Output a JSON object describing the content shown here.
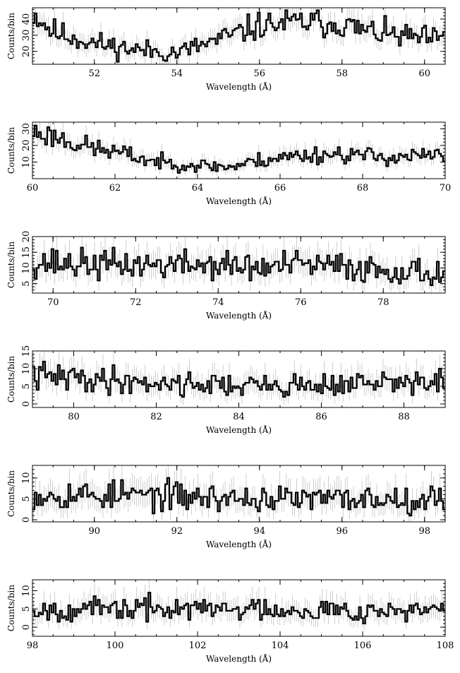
{
  "chart_data": [
    {
      "type": "line",
      "style": "histogram-step-with-errorbars",
      "xlabel": "Wavelength (Å)",
      "ylabel": "Counts/bin",
      "xlim": [
        50.5,
        60.5
      ],
      "ylim": [
        12,
        47
      ],
      "xticks": [
        52,
        54,
        56,
        58,
        60
      ],
      "yticks": [
        20,
        30,
        40
      ],
      "seed": 11,
      "segments": [
        [
          50.5,
          44
        ],
        [
          51.0,
          32
        ],
        [
          52.0,
          25
        ],
        [
          53.0,
          21
        ],
        [
          54.0,
          19
        ],
        [
          55.0,
          27
        ],
        [
          56.0,
          36
        ],
        [
          57.0,
          38
        ],
        [
          58.0,
          37
        ],
        [
          58.5,
          33
        ],
        [
          59.5,
          29
        ],
        [
          60.5,
          27
        ]
      ]
    },
    {
      "type": "line",
      "style": "histogram-step-with-errorbars",
      "xlabel": "Wavelength (Å)",
      "ylabel": "Counts/bin",
      "xlim": [
        60,
        70
      ],
      "ylim": [
        0,
        34
      ],
      "xticks": [
        60,
        62,
        64,
        66,
        68,
        70
      ],
      "yticks": [
        10,
        20,
        30
      ],
      "seed": 23,
      "segments": [
        [
          60,
          28
        ],
        [
          60.6,
          25
        ],
        [
          61.2,
          20
        ],
        [
          62.2,
          15
        ],
        [
          63.0,
          10
        ],
        [
          64.0,
          8
        ],
        [
          64.8,
          7
        ],
        [
          65.5,
          11
        ],
        [
          66.5,
          14
        ],
        [
          67.5,
          15
        ],
        [
          68.5,
          13
        ],
        [
          70.0,
          14
        ]
      ]
    },
    {
      "type": "line",
      "style": "histogram-step-with-errorbars",
      "xlabel": "Wavelength (Å)",
      "ylabel": "Counts/bin",
      "xlim": [
        69.5,
        79.5
      ],
      "ylim": [
        2,
        20
      ],
      "xticks": [
        70,
        72,
        74,
        76,
        78
      ],
      "yticks": [
        5,
        10,
        15,
        20
      ],
      "seed": 37,
      "segments": [
        [
          69.5,
          12
        ],
        [
          71.0,
          11
        ],
        [
          72.5,
          11
        ],
        [
          74.0,
          11
        ],
        [
          75.0,
          10
        ],
        [
          76.0,
          11
        ],
        [
          77.5,
          10
        ],
        [
          79.5,
          8
        ]
      ]
    },
    {
      "type": "line",
      "style": "histogram-step-with-errorbars",
      "xlabel": "Wavelength (Å)",
      "ylabel": "Counts/bin",
      "xlim": [
        79,
        89
      ],
      "ylim": [
        -1,
        15
      ],
      "xticks": [
        80,
        82,
        84,
        86,
        88
      ],
      "yticks": [
        0,
        5,
        10,
        15
      ],
      "seed": 41,
      "segments": [
        [
          79,
          8
        ],
        [
          80.5,
          7
        ],
        [
          82.0,
          6
        ],
        [
          83.5,
          5.5
        ],
        [
          85.0,
          5
        ],
        [
          86.5,
          5.5
        ],
        [
          89.0,
          6.5
        ]
      ]
    },
    {
      "type": "line",
      "style": "histogram-step-with-errorbars",
      "xlabel": "Wavelength (Å)",
      "ylabel": "Counts/bin",
      "xlim": [
        88.5,
        98.5
      ],
      "ylim": [
        -0.5,
        13
      ],
      "xticks": [
        90,
        92,
        94,
        96,
        98
      ],
      "yticks": [
        0,
        5,
        10
      ],
      "seed": 53,
      "segments": [
        [
          88.5,
          6
        ],
        [
          91.0,
          6
        ],
        [
          93.5,
          5
        ],
        [
          96.0,
          5
        ],
        [
          98.5,
          5
        ]
      ]
    },
    {
      "type": "line",
      "style": "histogram-step-with-errorbars",
      "xlabel": "Wavelength (Å)",
      "ylabel": "Counts/bin",
      "xlim": [
        98,
        108
      ],
      "ylim": [
        -2.5,
        13
      ],
      "xticks": [
        98,
        100,
        102,
        104,
        106,
        108
      ],
      "yticks": [
        0,
        5,
        10
      ],
      "seed": 67,
      "segments": [
        [
          98,
          5
        ],
        [
          101.0,
          5
        ],
        [
          104.0,
          5
        ],
        [
          106.0,
          4.5
        ],
        [
          108.0,
          4.5
        ]
      ]
    }
  ]
}
